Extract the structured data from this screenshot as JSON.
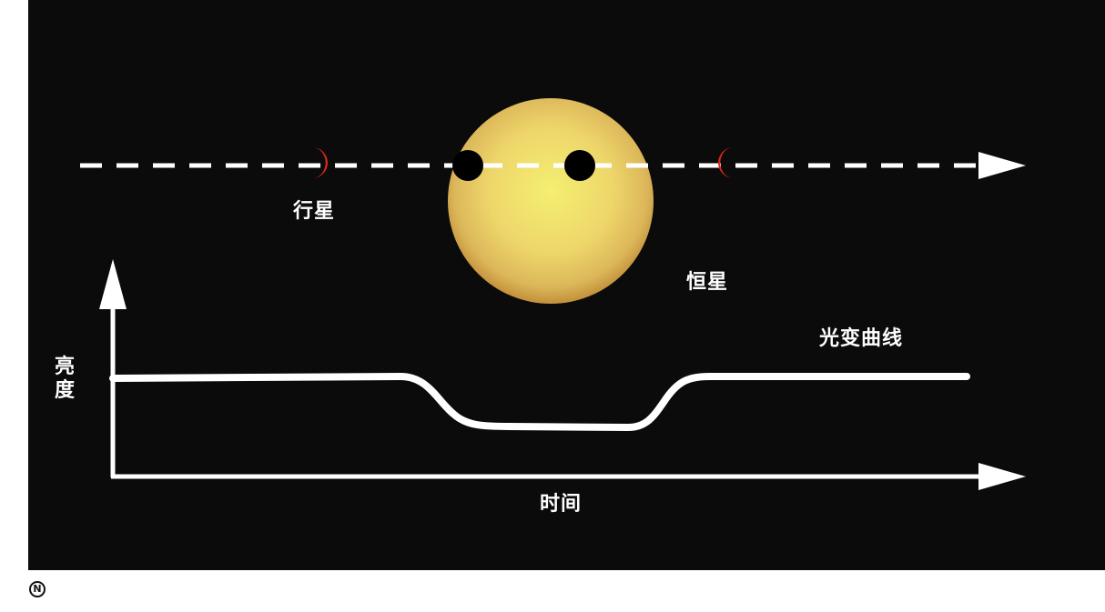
{
  "labels": {
    "planet": "行星",
    "star": "恒星",
    "light_curve": "光变曲线",
    "brightness": "亮度",
    "time": "时间"
  },
  "badge": {
    "symbol": "N"
  },
  "colors": {
    "background": "#0b0b0b",
    "star_center": "#f2ec6a",
    "star_edge": "#c99a3c",
    "planet_crescent": "#e0261b",
    "planet_transit": "#000000",
    "lines": "#ffffff"
  },
  "icons": {
    "planet_left": "crescent-planet-icon",
    "planet_right": "crescent-planet-icon",
    "transit_planets": "black-disc-icon"
  }
}
